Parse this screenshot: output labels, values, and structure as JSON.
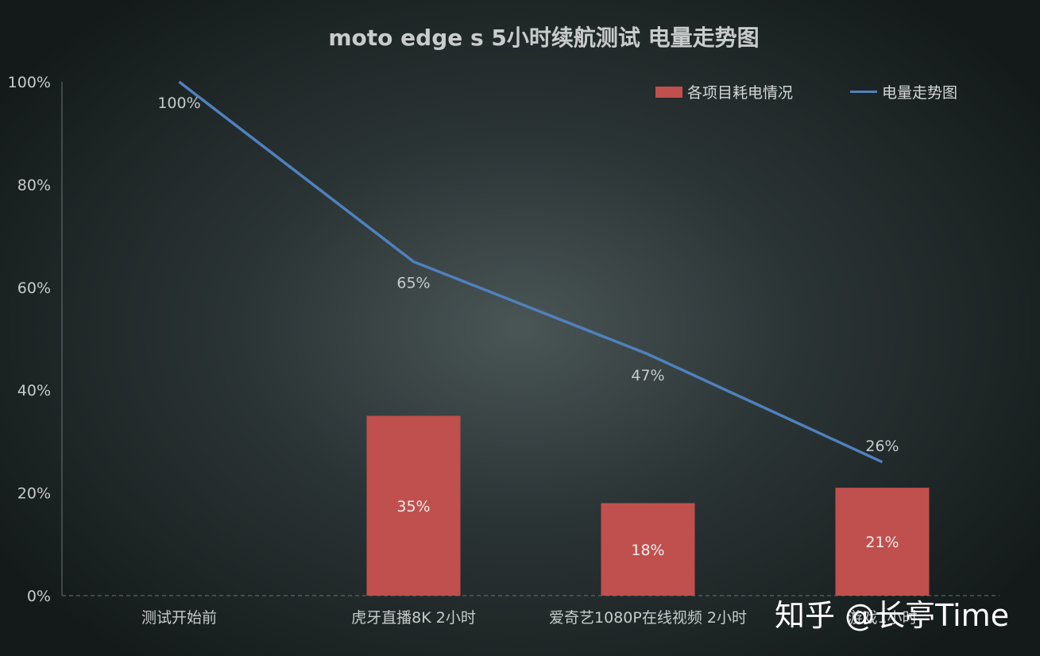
{
  "chart_data": {
    "type": "bar",
    "title": "moto edge s  5小时续航测试  电量走势图",
    "categories": [
      "测试开始前",
      "虎牙直播8K  2小时",
      "爱奇艺1080P在线视频 2小时",
      "游戏1小时"
    ],
    "series": [
      {
        "name": "各项目耗电情况",
        "type": "bar",
        "values": [
          null,
          35,
          18,
          21
        ],
        "labels": [
          "",
          "35%",
          "18%",
          "21%"
        ],
        "color": "#c0504d"
      },
      {
        "name": "电量走势图",
        "type": "line",
        "values": [
          100,
          65,
          47,
          26
        ],
        "labels": [
          "100%",
          "65%",
          "47%",
          "26%"
        ],
        "color": "#4f81bd"
      }
    ],
    "ylim": [
      0,
      100
    ],
    "yticks": [
      "0%",
      "20%",
      "40%",
      "60%",
      "80%",
      "100%"
    ],
    "legend_position": "top-right",
    "grid": false
  },
  "watermark": "知乎 @长亭Time"
}
